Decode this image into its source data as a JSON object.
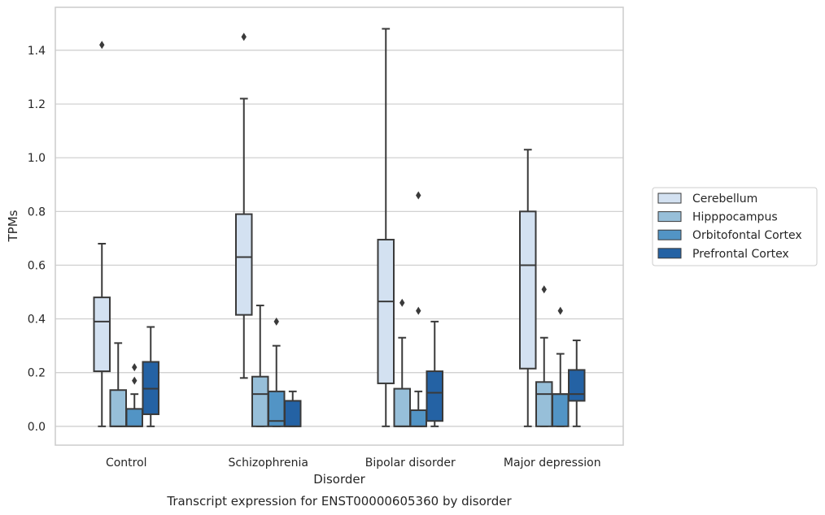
{
  "chart_data": {
    "type": "box",
    "title": "Transcript expression for ENST00000605360 by disorder",
    "xlabel": "Disorder",
    "ylabel": "TPMs",
    "ylim": [
      -0.07,
      1.56
    ],
    "yticks": [
      "0.0",
      "0.2",
      "0.4",
      "0.6",
      "0.8",
      "1.0",
      "1.2",
      "1.4"
    ],
    "grid": "horizontal",
    "legend_position": "right",
    "categories": [
      "Control",
      "Schizophrenia",
      "Bipolar disorder",
      "Major depression"
    ],
    "series": [
      {
        "name": "Cerebellum",
        "color": "#d3e1f1",
        "boxes": [
          {
            "whislo": 0.0,
            "q1": 0.205,
            "med": 0.39,
            "q3": 0.48,
            "whishi": 0.68,
            "fliers": [
              1.42
            ]
          },
          {
            "whislo": 0.18,
            "q1": 0.415,
            "med": 0.63,
            "q3": 0.79,
            "whishi": 1.22,
            "fliers": [
              1.45
            ]
          },
          {
            "whislo": 0.0,
            "q1": 0.16,
            "med": 0.465,
            "q3": 0.695,
            "whishi": 1.48,
            "fliers": []
          },
          {
            "whislo": 0.0,
            "q1": 0.215,
            "med": 0.6,
            "q3": 0.8,
            "whishi": 1.03,
            "fliers": []
          }
        ]
      },
      {
        "name": "Hipppocampus",
        "color": "#97bfd9",
        "boxes": [
          {
            "whislo": 0.0,
            "q1": 0.0,
            "med": 0.0,
            "q3": 0.135,
            "whishi": 0.31,
            "fliers": []
          },
          {
            "whislo": 0.0,
            "q1": 0.0,
            "med": 0.12,
            "q3": 0.185,
            "whishi": 0.45,
            "fliers": []
          },
          {
            "whislo": 0.0,
            "q1": 0.0,
            "med": 0.0,
            "q3": 0.14,
            "whishi": 0.33,
            "fliers": [
              0.46
            ]
          },
          {
            "whislo": 0.0,
            "q1": 0.0,
            "med": 0.12,
            "q3": 0.165,
            "whishi": 0.33,
            "fliers": [
              0.51
            ]
          }
        ]
      },
      {
        "name": "Orbitofontal Cortex",
        "color": "#5294c5",
        "boxes": [
          {
            "whislo": 0.0,
            "q1": 0.0,
            "med": 0.0,
            "q3": 0.065,
            "whishi": 0.12,
            "fliers": [
              0.17,
              0.22
            ]
          },
          {
            "whislo": 0.0,
            "q1": 0.0,
            "med": 0.02,
            "q3": 0.13,
            "whishi": 0.3,
            "fliers": [
              0.39
            ]
          },
          {
            "whislo": 0.0,
            "q1": 0.0,
            "med": 0.0,
            "q3": 0.06,
            "whishi": 0.13,
            "fliers": [
              0.43,
              0.86
            ]
          },
          {
            "whislo": 0.0,
            "q1": 0.0,
            "med": 0.12,
            "q3": 0.12,
            "whishi": 0.27,
            "fliers": [
              0.43
            ]
          }
        ]
      },
      {
        "name": "Prefrontal Cortex",
        "color": "#2462a4",
        "boxes": [
          {
            "whislo": 0.0,
            "q1": 0.045,
            "med": 0.14,
            "q3": 0.24,
            "whishi": 0.37,
            "fliers": []
          },
          {
            "whislo": 0.0,
            "q1": 0.0,
            "med": 0.0,
            "q3": 0.095,
            "whishi": 0.13,
            "fliers": []
          },
          {
            "whislo": 0.0,
            "q1": 0.02,
            "med": 0.125,
            "q3": 0.205,
            "whishi": 0.39,
            "fliers": []
          },
          {
            "whislo": 0.0,
            "q1": 0.095,
            "med": 0.12,
            "q3": 0.21,
            "whishi": 0.32,
            "fliers": []
          }
        ]
      }
    ]
  }
}
